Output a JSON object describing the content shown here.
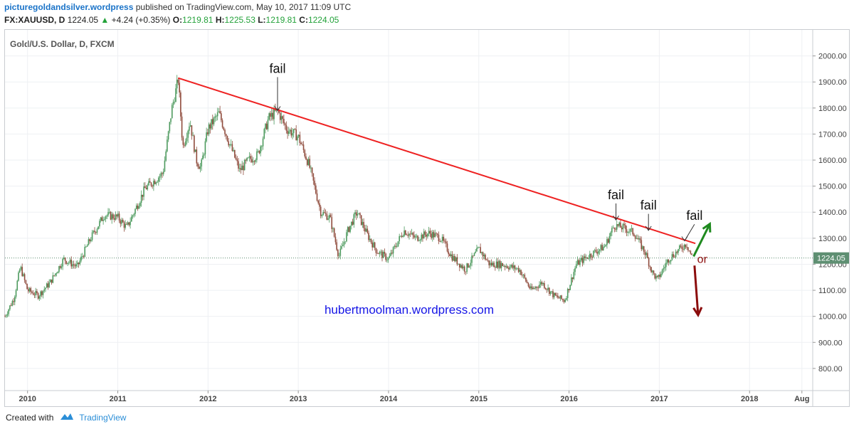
{
  "header": {
    "site": "picturegoldandsilver.wordpress",
    "published": "published on TradingView.com, May 10, 2017 11:09 UTC",
    "symbol": "FX:XAUUSD, D",
    "last": "1224.05",
    "change": "+4.24 (+0.35%)",
    "o_label": "O:",
    "o_val": "1219.81",
    "h_label": "H:",
    "h_val": "1225.53",
    "l_label": "L:",
    "l_val": "1219.81",
    "c_label": "C:",
    "c_val": "1224.05"
  },
  "chart_title": "Gold/U.S. Dollar, D, FXCM",
  "footer": {
    "created_with": "Created with",
    "brand": "TradingView"
  },
  "colors": {
    "trendline": "#ee2222",
    "up_arrow": "#1f8a1f",
    "down_arrow": "#8b0c0c",
    "candle_up": "#4d9a5e",
    "candle_down": "#8f4b3c",
    "watermark": "#1515e6",
    "last_price_bg": "#5e8f72"
  },
  "chart_data": {
    "type": "candlestick",
    "title": "Gold/U.S. Dollar, D, FXCM",
    "ylim": [
      715,
      2100
    ],
    "yticks": [
      800,
      900,
      1000,
      1100,
      1200,
      1300,
      1400,
      1500,
      1600,
      1700,
      1800,
      1900,
      2000
    ],
    "ytick_labels": [
      "800.00",
      "900.00",
      "1000.00",
      "1100.00",
      "1200.00",
      "1300.00",
      "1400.00",
      "1500.00",
      "1600.00",
      "1700.00",
      "1800.00",
      "1900.00",
      "2000.00"
    ],
    "xlim": [
      2009.75,
      2018.7
    ],
    "xticks": [
      2010,
      2011,
      2012,
      2013,
      2014,
      2015,
      2016,
      2017,
      2018,
      2018.58
    ],
    "xtick_labels": [
      "2010",
      "2011",
      "2012",
      "2013",
      "2014",
      "2015",
      "2016",
      "2017",
      "2018",
      "Aug"
    ],
    "current_price": 1224.05,
    "current_price_label": "1224.05",
    "price_path": [
      [
        2009.75,
        1000
      ],
      [
        2009.85,
        1070
      ],
      [
        2009.92,
        1190
      ],
      [
        2010.0,
        1100
      ],
      [
        2010.12,
        1080
      ],
      [
        2010.25,
        1130
      ],
      [
        2010.4,
        1220
      ],
      [
        2010.55,
        1190
      ],
      [
        2010.7,
        1300
      ],
      [
        2010.85,
        1390
      ],
      [
        2011.0,
        1380
      ],
      [
        2011.1,
        1340
      ],
      [
        2011.3,
        1490
      ],
      [
        2011.5,
        1550
      ],
      [
        2011.6,
        1800
      ],
      [
        2011.67,
        1910
      ],
      [
        2011.72,
        1650
      ],
      [
        2011.8,
        1750
      ],
      [
        2011.87,
        1600
      ],
      [
        2011.92,
        1570
      ],
      [
        2012.0,
        1720
      ],
      [
        2012.12,
        1780
      ],
      [
        2012.22,
        1680
      ],
      [
        2012.35,
        1560
      ],
      [
        2012.45,
        1600
      ],
      [
        2012.55,
        1620
      ],
      [
        2012.67,
        1760
      ],
      [
        2012.77,
        1790
      ],
      [
        2012.87,
        1720
      ],
      [
        2013.0,
        1690
      ],
      [
        2013.12,
        1580
      ],
      [
        2013.25,
        1400
      ],
      [
        2013.35,
        1380
      ],
      [
        2013.45,
        1230
      ],
      [
        2013.55,
        1330
      ],
      [
        2013.65,
        1400
      ],
      [
        2013.77,
        1310
      ],
      [
        2013.87,
        1250
      ],
      [
        2014.0,
        1220
      ],
      [
        2014.17,
        1330
      ],
      [
        2014.3,
        1300
      ],
      [
        2014.45,
        1320
      ],
      [
        2014.58,
        1300
      ],
      [
        2014.7,
        1230
      ],
      [
        2014.85,
        1180
      ],
      [
        2015.0,
        1260
      ],
      [
        2015.12,
        1200
      ],
      [
        2015.25,
        1200
      ],
      [
        2015.45,
        1180
      ],
      [
        2015.58,
        1100
      ],
      [
        2015.7,
        1130
      ],
      [
        2015.83,
        1080
      ],
      [
        2015.95,
        1060
      ],
      [
        2016.08,
        1200
      ],
      [
        2016.25,
        1240
      ],
      [
        2016.4,
        1270
      ],
      [
        2016.5,
        1350
      ],
      [
        2016.6,
        1340
      ],
      [
        2016.72,
        1320
      ],
      [
        2016.85,
        1240
      ],
      [
        2016.92,
        1170
      ],
      [
        2016.98,
        1140
      ],
      [
        2017.1,
        1220
      ],
      [
        2017.2,
        1250
      ],
      [
        2017.3,
        1280
      ],
      [
        2017.36,
        1230
      ]
    ],
    "trendline": {
      "from": [
        2011.67,
        1915
      ],
      "to": [
        2017.4,
        1280
      ]
    },
    "annotations": [
      {
        "text": "fail",
        "at": [
          2012.77,
          1790
        ],
        "label_at": [
          2012.77,
          1935
        ]
      },
      {
        "text": "fail",
        "at": [
          2016.52,
          1370
        ],
        "label_at": [
          2016.52,
          1450
        ]
      },
      {
        "text": "fail",
        "at": [
          2016.88,
          1330
        ],
        "label_at": [
          2016.88,
          1410
        ]
      },
      {
        "text": "fail",
        "at": [
          2017.28,
          1290
        ],
        "label_at": [
          2017.39,
          1370
        ]
      },
      {
        "text": "or",
        "at": [
          2017.42,
          1222
        ]
      }
    ],
    "arrows": [
      {
        "dir": "up",
        "from": [
          2017.38,
          1230
        ],
        "to": [
          2017.56,
          1355
        ]
      },
      {
        "dir": "down",
        "from": [
          2017.39,
          1195
        ],
        "to": [
          2017.43,
          1005
        ]
      }
    ],
    "watermark": {
      "text": "hubertmoolman.wordpress.com",
      "at": [
        2014.0,
        1010
      ]
    }
  }
}
